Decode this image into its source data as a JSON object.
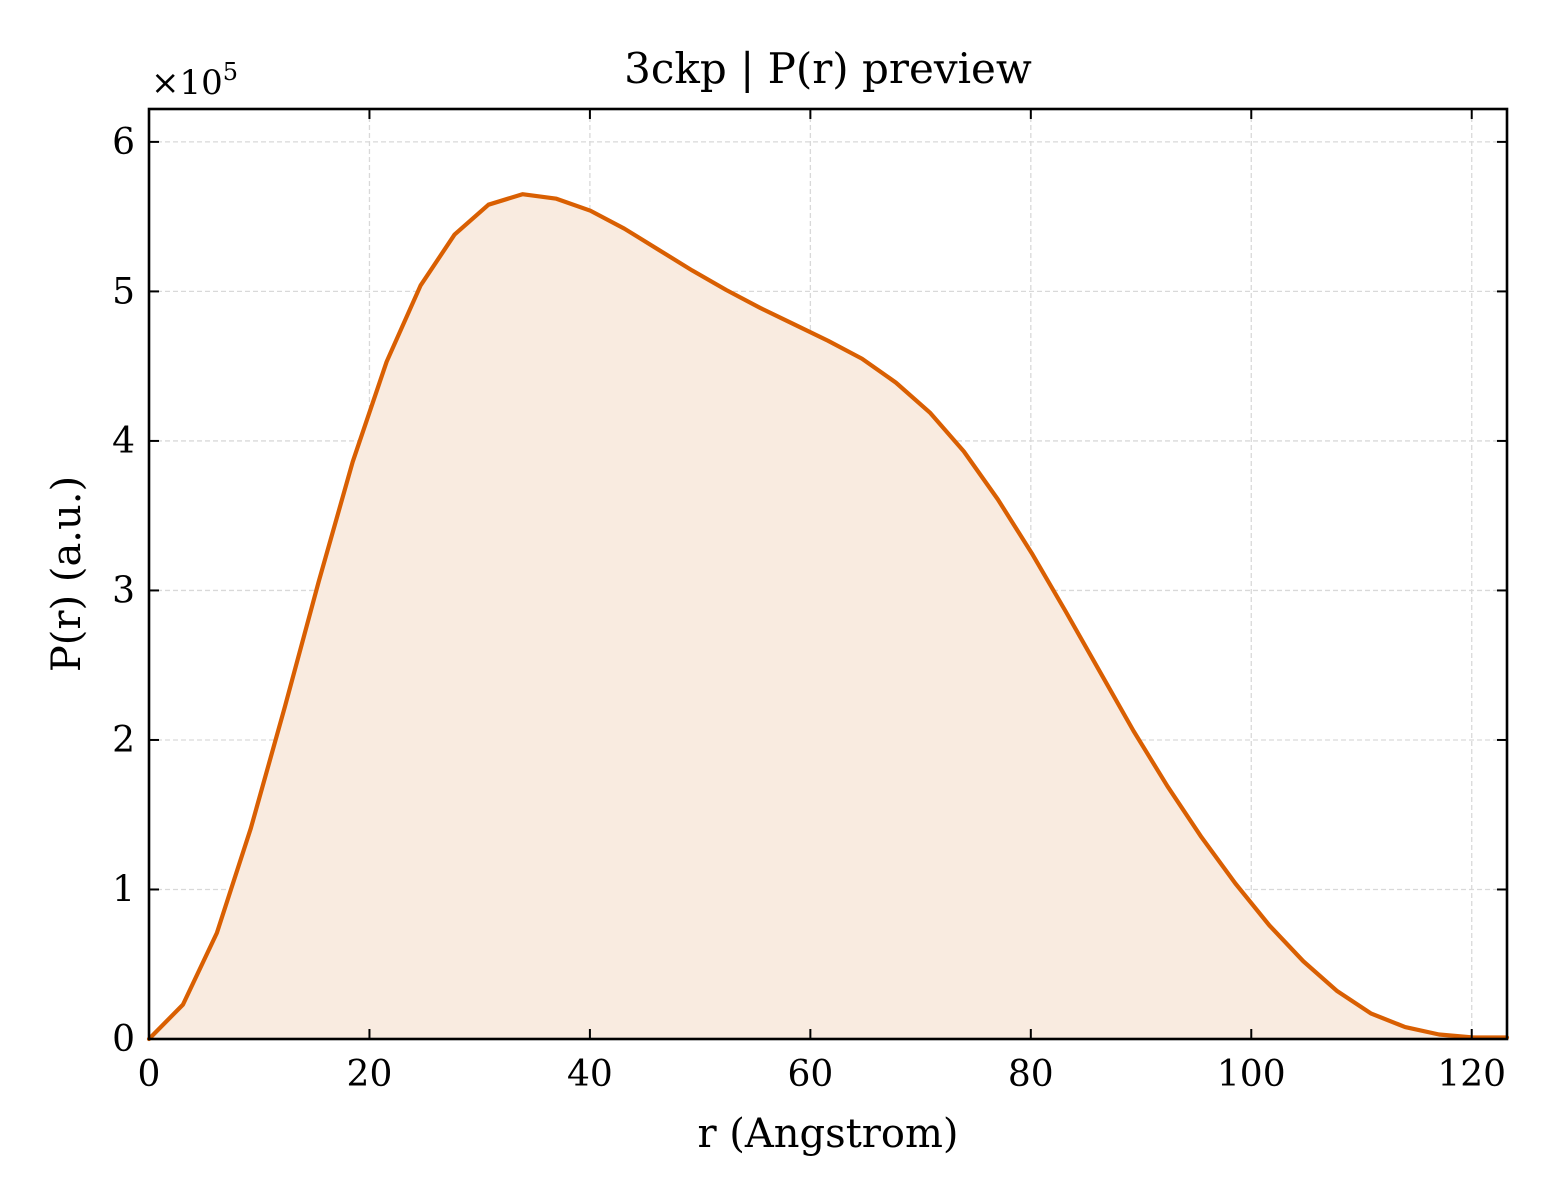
{
  "chart_data": {
    "type": "area",
    "title": "3ckp | P(r) preview",
    "xlabel": "r (Angstrom)",
    "ylabel": "P(r) (a.u.)",
    "y_scale_label": {
      "prefix": "×10",
      "exponent": "5"
    },
    "xlim": [
      0,
      123.2
    ],
    "ylim": [
      0,
      6.22
    ],
    "y_multiplier": 100000,
    "xticks": [
      0,
      20,
      40,
      60,
      80,
      100,
      120
    ],
    "yticks": [
      0,
      1,
      2,
      3,
      4,
      5,
      6
    ],
    "grid": true,
    "legend": "none",
    "colors": {
      "line": "#d95f02",
      "fill": "#f9ebe0",
      "grid": "#d9d9d9",
      "axes": "#000000"
    },
    "series": [
      {
        "x": [
          0,
          3.08,
          6.16,
          9.24,
          12.32,
          15.4,
          18.48,
          21.56,
          24.64,
          27.72,
          30.8,
          33.88,
          36.96,
          40.04,
          43.12,
          46.2,
          49.28,
          52.36,
          55.44,
          58.52,
          61.6,
          64.68,
          67.76,
          70.84,
          73.92,
          77.0,
          80.08,
          83.16,
          86.24,
          89.32,
          92.4,
          95.48,
          98.56,
          101.64,
          104.72,
          107.8,
          110.88,
          113.96,
          117.04,
          120.12,
          123.2
        ],
        "y": [
          0,
          0.23,
          0.71,
          1.41,
          2.22,
          3.06,
          3.86,
          4.53,
          5.04,
          5.38,
          5.58,
          5.65,
          5.62,
          5.54,
          5.42,
          5.28,
          5.14,
          5.01,
          4.89,
          4.78,
          4.67,
          4.55,
          4.39,
          4.19,
          3.93,
          3.61,
          3.25,
          2.86,
          2.46,
          2.06,
          1.69,
          1.35,
          1.04,
          0.76,
          0.52,
          0.32,
          0.17,
          0.08,
          0.03,
          0.01,
          0.01
        ]
      }
    ]
  }
}
